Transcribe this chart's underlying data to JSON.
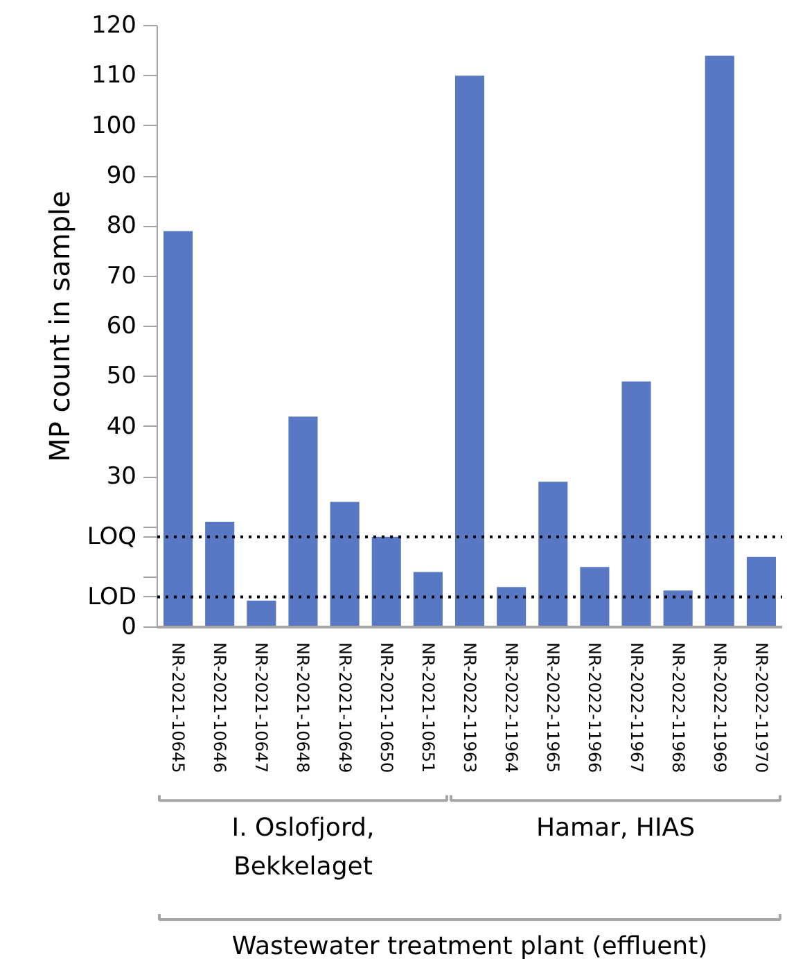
{
  "chart_data": {
    "type": "bar",
    "ylabel": "MP count in sample",
    "categories": [
      "NR-2021-10645",
      "NR-2021-10646",
      "NR-2021-10647",
      "NR-2021-10648",
      "NR-2021-10649",
      "NR-2021-10650",
      "NR-2021-10651",
      "NR-2022-11963",
      "NR-2022-11964",
      "NR-2022-11965",
      "NR-2022-11966",
      "NR-2022-11967",
      "NR-2022-11968",
      "NR-2022-11969",
      "NR-2022-11970"
    ],
    "values": [
      79,
      21,
      5.3,
      42,
      25,
      18,
      11,
      110,
      8,
      29,
      12,
      49,
      7.3,
      114,
      14
    ],
    "color": "#5878c4",
    "ylim": [
      0,
      120
    ],
    "yticks": [
      0,
      {
        "value": 6,
        "label": "LOD"
      },
      {
        "value": 10,
        "label": null
      },
      {
        "value": 18,
        "label": "LOQ"
      },
      {
        "value": 20,
        "label": null
      },
      30,
      40,
      50,
      60,
      70,
      80,
      90,
      100,
      110,
      120
    ],
    "ref_lines": [
      {
        "axis": "y",
        "value": 6,
        "color": "#000000",
        "line_style": "dotted"
      },
      {
        "axis": "y",
        "value": 18,
        "color": "#000000",
        "line_style": "dotted"
      }
    ],
    "annotations": [
      "I. Oslofjord, Bekkelaget",
      "Hamar, HIAS",
      "Wastewater treatment plant (effluent)"
    ],
    "grid": false
  }
}
